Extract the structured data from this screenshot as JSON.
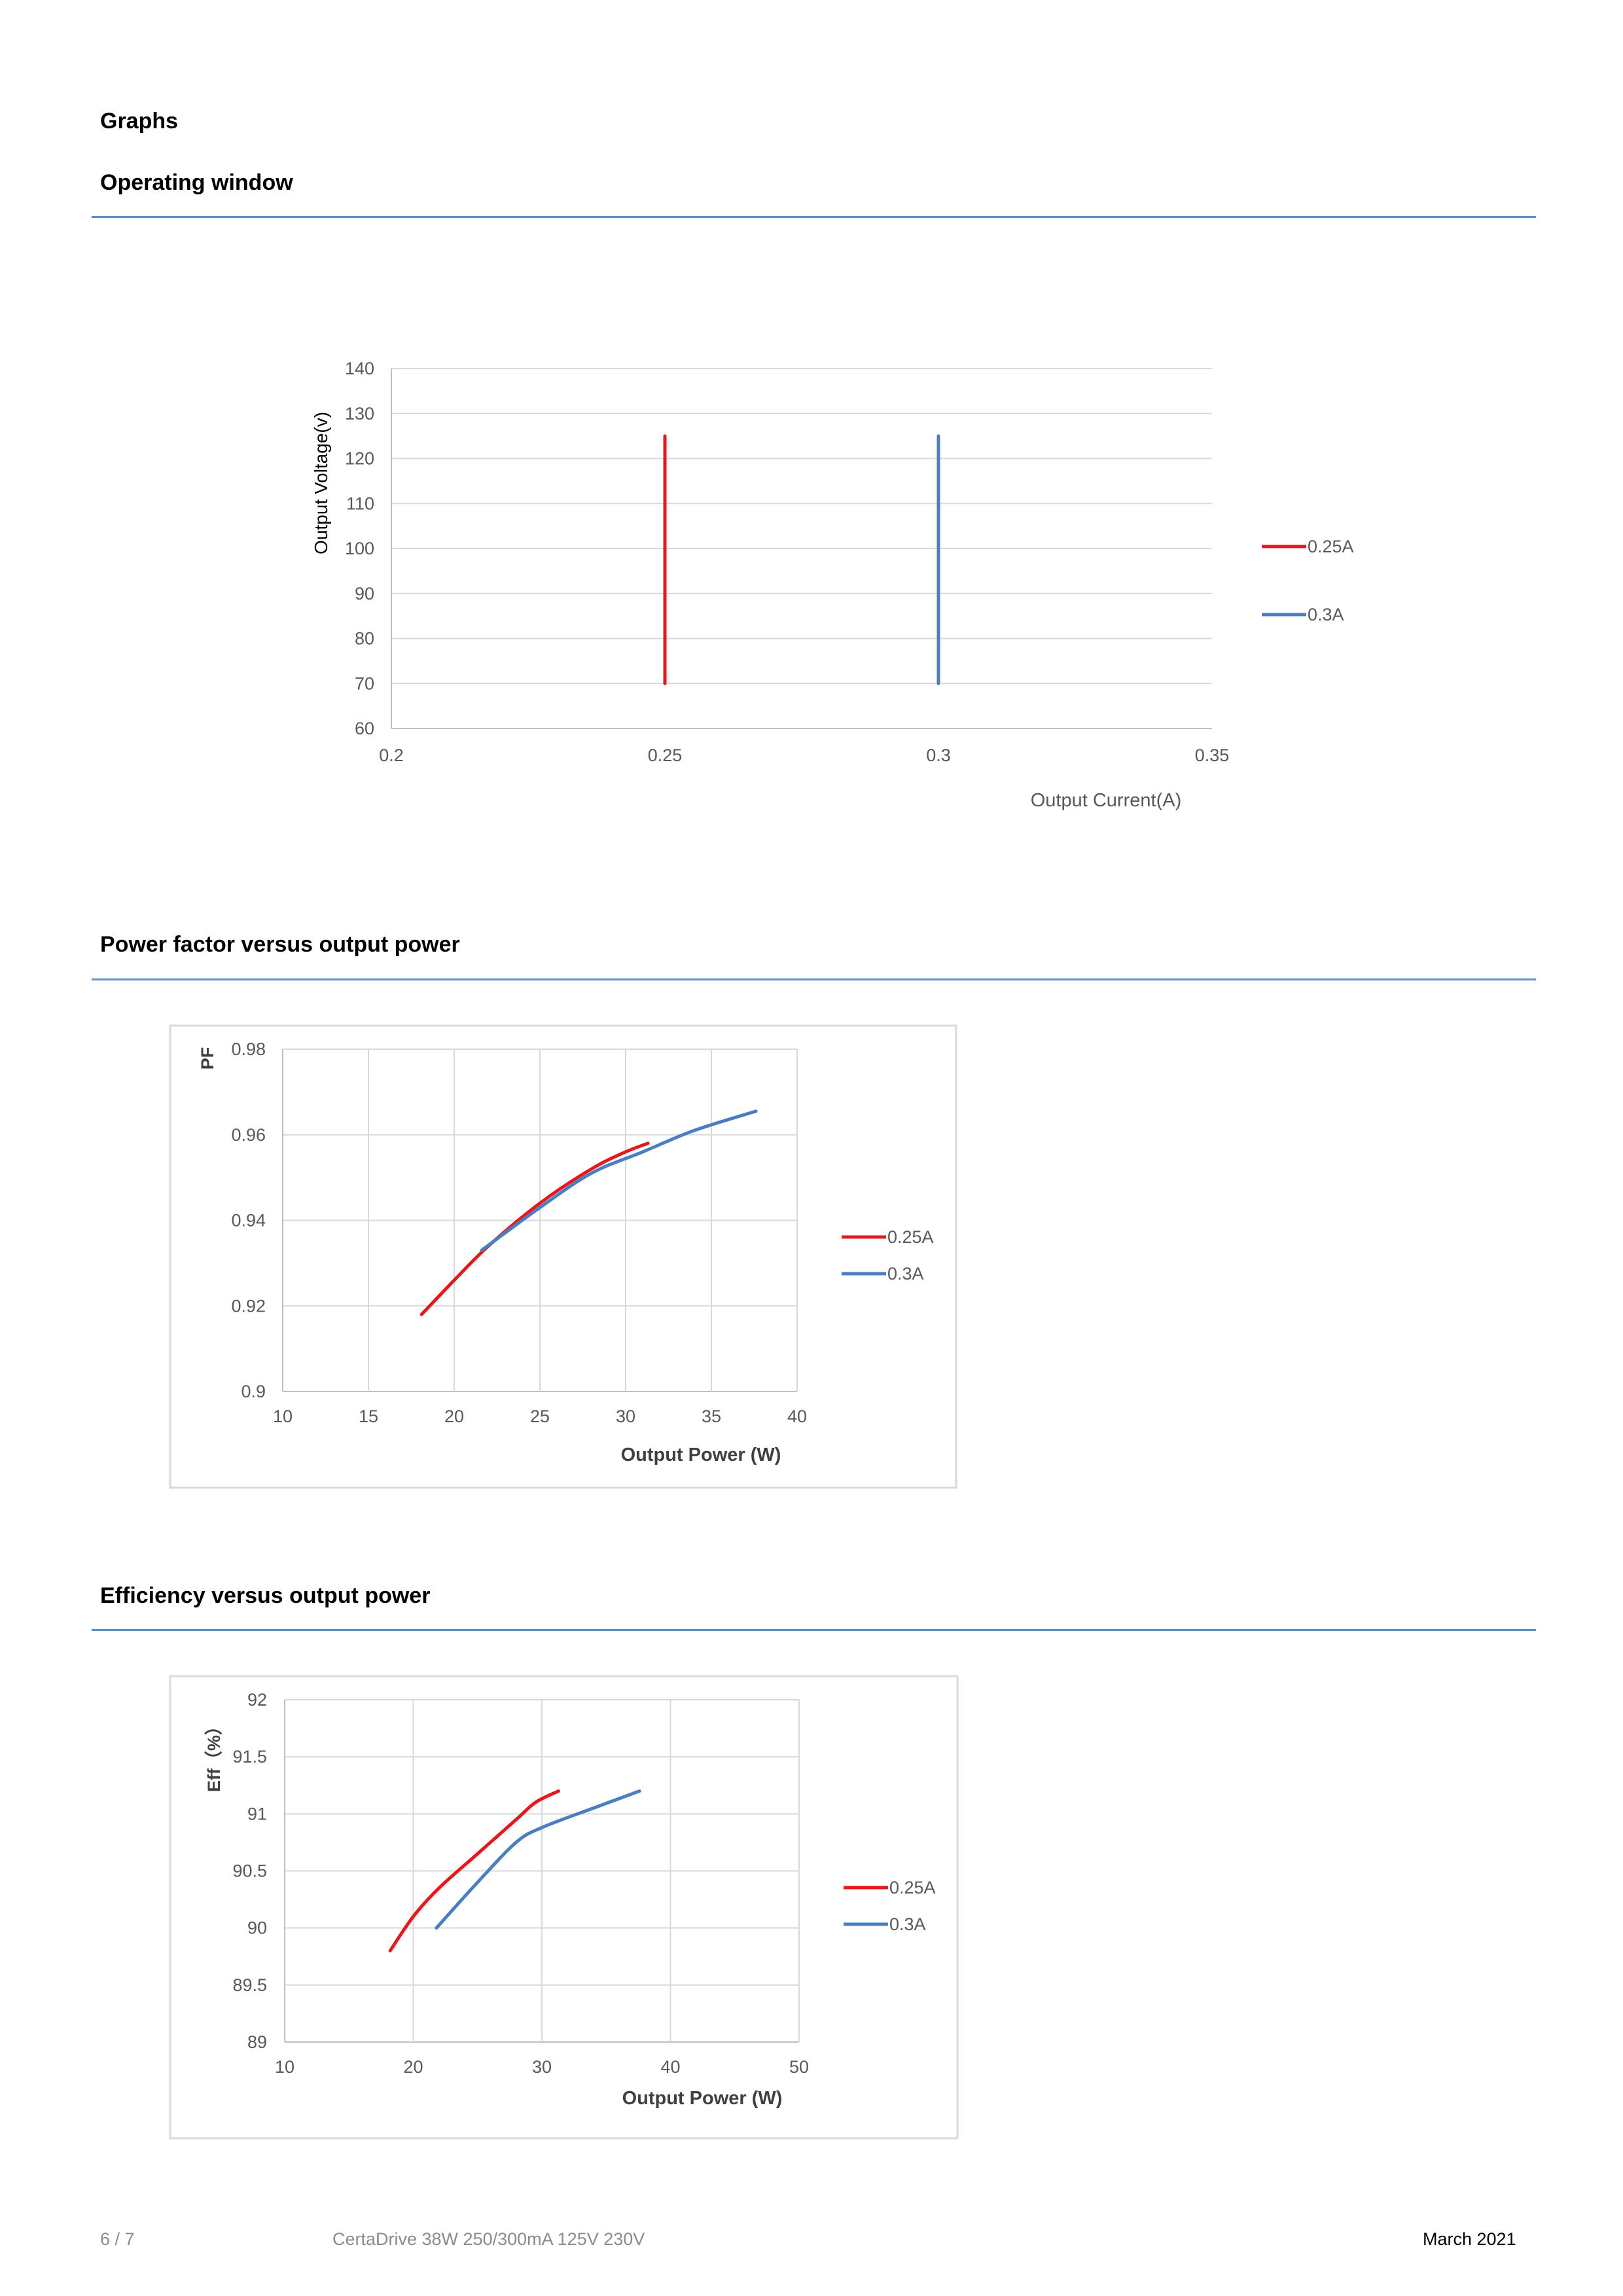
{
  "page": {
    "section_title": "Graphs",
    "headings": {
      "operating_window": "Operating window",
      "pf_vs_power": "Power factor versus output power",
      "eff_vs_power": "Efficiency versus output power"
    },
    "footer": {
      "page_number": "6 / 7",
      "product": "CertaDrive 38W 250/300mA 125V 230V",
      "date": "March 2021"
    }
  },
  "colors": {
    "red": "#e8171b",
    "blue": "#4a7ec2",
    "grid": "#d9d9d9",
    "rule": "#5b8fc7"
  },
  "chart_data": [
    {
      "type": "line",
      "xlabel": "Output Current(A)",
      "ylabel": "Output Voltage(v)",
      "xlim": [
        0.2,
        0.35
      ],
      "ylim": [
        60,
        140
      ],
      "xticks": [
        "0.2",
        "0.25",
        "0.3",
        "0.35"
      ],
      "yticks": [
        "60",
        "70",
        "80",
        "90",
        "100",
        "110",
        "120",
        "130",
        "140"
      ],
      "grid": "horizontal",
      "legend": "right",
      "series": [
        {
          "name": "0.25A",
          "color": "#e8171b",
          "x": [
            0.25,
            0.25
          ],
          "y": [
            70,
            125
          ]
        },
        {
          "name": "0.3A",
          "color": "#4a7ec2",
          "x": [
            0.3,
            0.3
          ],
          "y": [
            70,
            125
          ]
        }
      ]
    },
    {
      "type": "line",
      "xlabel": "Output Power (W)",
      "ylabel": "PF",
      "xlim": [
        10,
        40
      ],
      "ylim": [
        0.9,
        0.98
      ],
      "xticks": [
        "10",
        "15",
        "20",
        "25",
        "30",
        "35",
        "40"
      ],
      "yticks": [
        "0.9",
        "0.92",
        "0.94",
        "0.96",
        "0.98"
      ],
      "grid": "both",
      "legend": "right",
      "series": [
        {
          "name": "0.25A",
          "color": "#e8171b",
          "x": [
            18.1,
            20,
            22,
            25,
            28,
            30,
            31.3
          ],
          "y": [
            0.918,
            0.926,
            0.934,
            0.944,
            0.952,
            0.956,
            0.958
          ]
        },
        {
          "name": "0.3A",
          "color": "#4a7ec2",
          "x": [
            21.6,
            25,
            28,
            31,
            34,
            37.6
          ],
          "y": [
            0.933,
            0.943,
            0.951,
            0.956,
            0.961,
            0.9655
          ]
        }
      ]
    },
    {
      "type": "line",
      "xlabel": "Output Power (W)",
      "ylabel": "Eff（%）",
      "xlim": [
        10,
        50
      ],
      "ylim": [
        89,
        92
      ],
      "xticks": [
        "10",
        "20",
        "30",
        "40",
        "50"
      ],
      "yticks": [
        "89",
        "89.5",
        "90",
        "90.5",
        "91",
        "91.5",
        "92"
      ],
      "grid": "both",
      "legend": "right",
      "series": [
        {
          "name": "0.25A",
          "color": "#e8171b",
          "x": [
            18.2,
            20,
            22,
            25,
            28,
            29.5,
            31.3
          ],
          "y": [
            89.8,
            90.1,
            90.35,
            90.65,
            90.95,
            91.1,
            91.2
          ]
        },
        {
          "name": "0.3A",
          "color": "#4a7ec2",
          "x": [
            21.8,
            25,
            28,
            30,
            34,
            37.6
          ],
          "y": [
            90.0,
            90.4,
            90.75,
            90.88,
            91.05,
            91.2
          ]
        }
      ]
    }
  ]
}
